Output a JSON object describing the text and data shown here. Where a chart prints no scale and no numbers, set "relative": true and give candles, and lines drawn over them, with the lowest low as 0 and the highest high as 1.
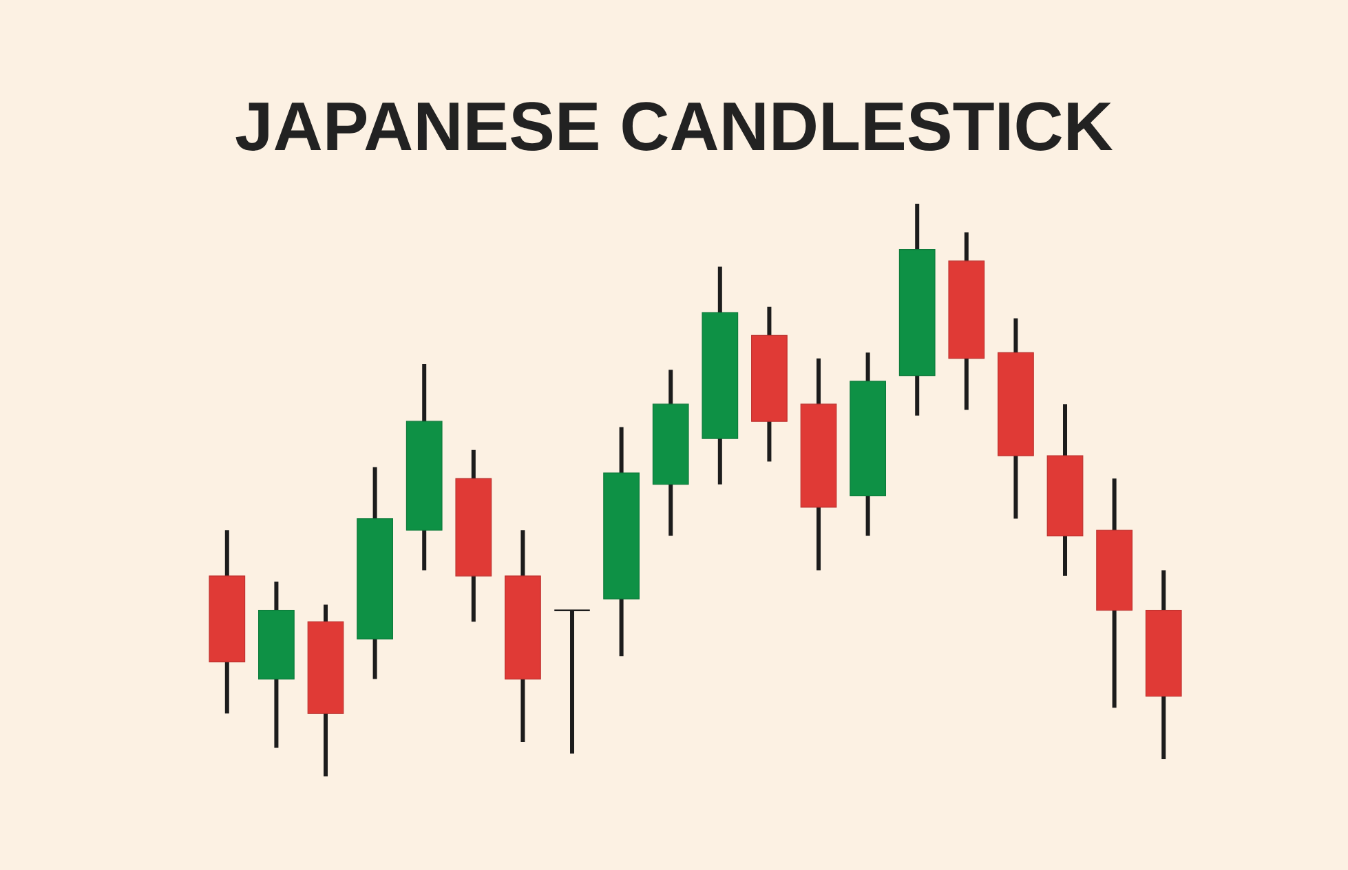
{
  "chart_data": {
    "type": "candlestick",
    "title": "JAPANESE CANDLESTICK",
    "relative": true,
    "tick_labels": false,
    "categories": [
      null,
      null,
      null,
      null,
      null,
      null,
      null,
      null,
      null,
      null,
      null,
      null,
      null,
      null,
      null,
      null,
      null,
      null,
      null,
      null
    ],
    "ohlc": [
      [
        0.35,
        0.43,
        0.11,
        0.2
      ],
      [
        0.17,
        0.34,
        0.05,
        0.29
      ],
      [
        0.27,
        0.3,
        0,
        0.11
      ],
      [
        0.24,
        0.54,
        0.17,
        0.45
      ],
      [
        0.43,
        0.72,
        0.36,
        0.62
      ],
      [
        0.52,
        0.57,
        0.27,
        0.35
      ],
      [
        0.35,
        0.43,
        0.06,
        0.17
      ],
      [
        0.29,
        0.29,
        0.04,
        0.29
      ],
      [
        0.31,
        0.61,
        0.21,
        0.53
      ],
      [
        0.51,
        0.71,
        0.42,
        0.65
      ],
      [
        0.59,
        0.89,
        0.51,
        0.81
      ],
      [
        0.77,
        0.82,
        0.55,
        0.62
      ],
      [
        0.65,
        0.73,
        0.36,
        0.47
      ],
      [
        0.49,
        0.74,
        0.42,
        0.69
      ],
      [
        0.7,
        1,
        0.63,
        0.92
      ],
      [
        0.9,
        0.95,
        0.64,
        0.73
      ],
      [
        0.74,
        0.8,
        0.45,
        0.56
      ],
      [
        0.56,
        0.65,
        0.35,
        0.42
      ],
      [
        0.43,
        0.52,
        0.12,
        0.29
      ],
      [
        0.29,
        0.36,
        0.03,
        0.14
      ]
    ],
    "colors": [
      "#e03a36",
      "#0e9145",
      "#e03a36",
      "#0e9145",
      "#0e9145",
      "#e03a36",
      "#e03a36",
      "#1c1c1c",
      "#0e9145",
      "#0e9145",
      "#0e9145",
      "#e03a36",
      "#e03a36",
      "#0e9145",
      "#0e9145",
      "#e03a36",
      "#e03a36",
      "#e03a36",
      "#e03a36",
      "#e03a36"
    ]
  }
}
